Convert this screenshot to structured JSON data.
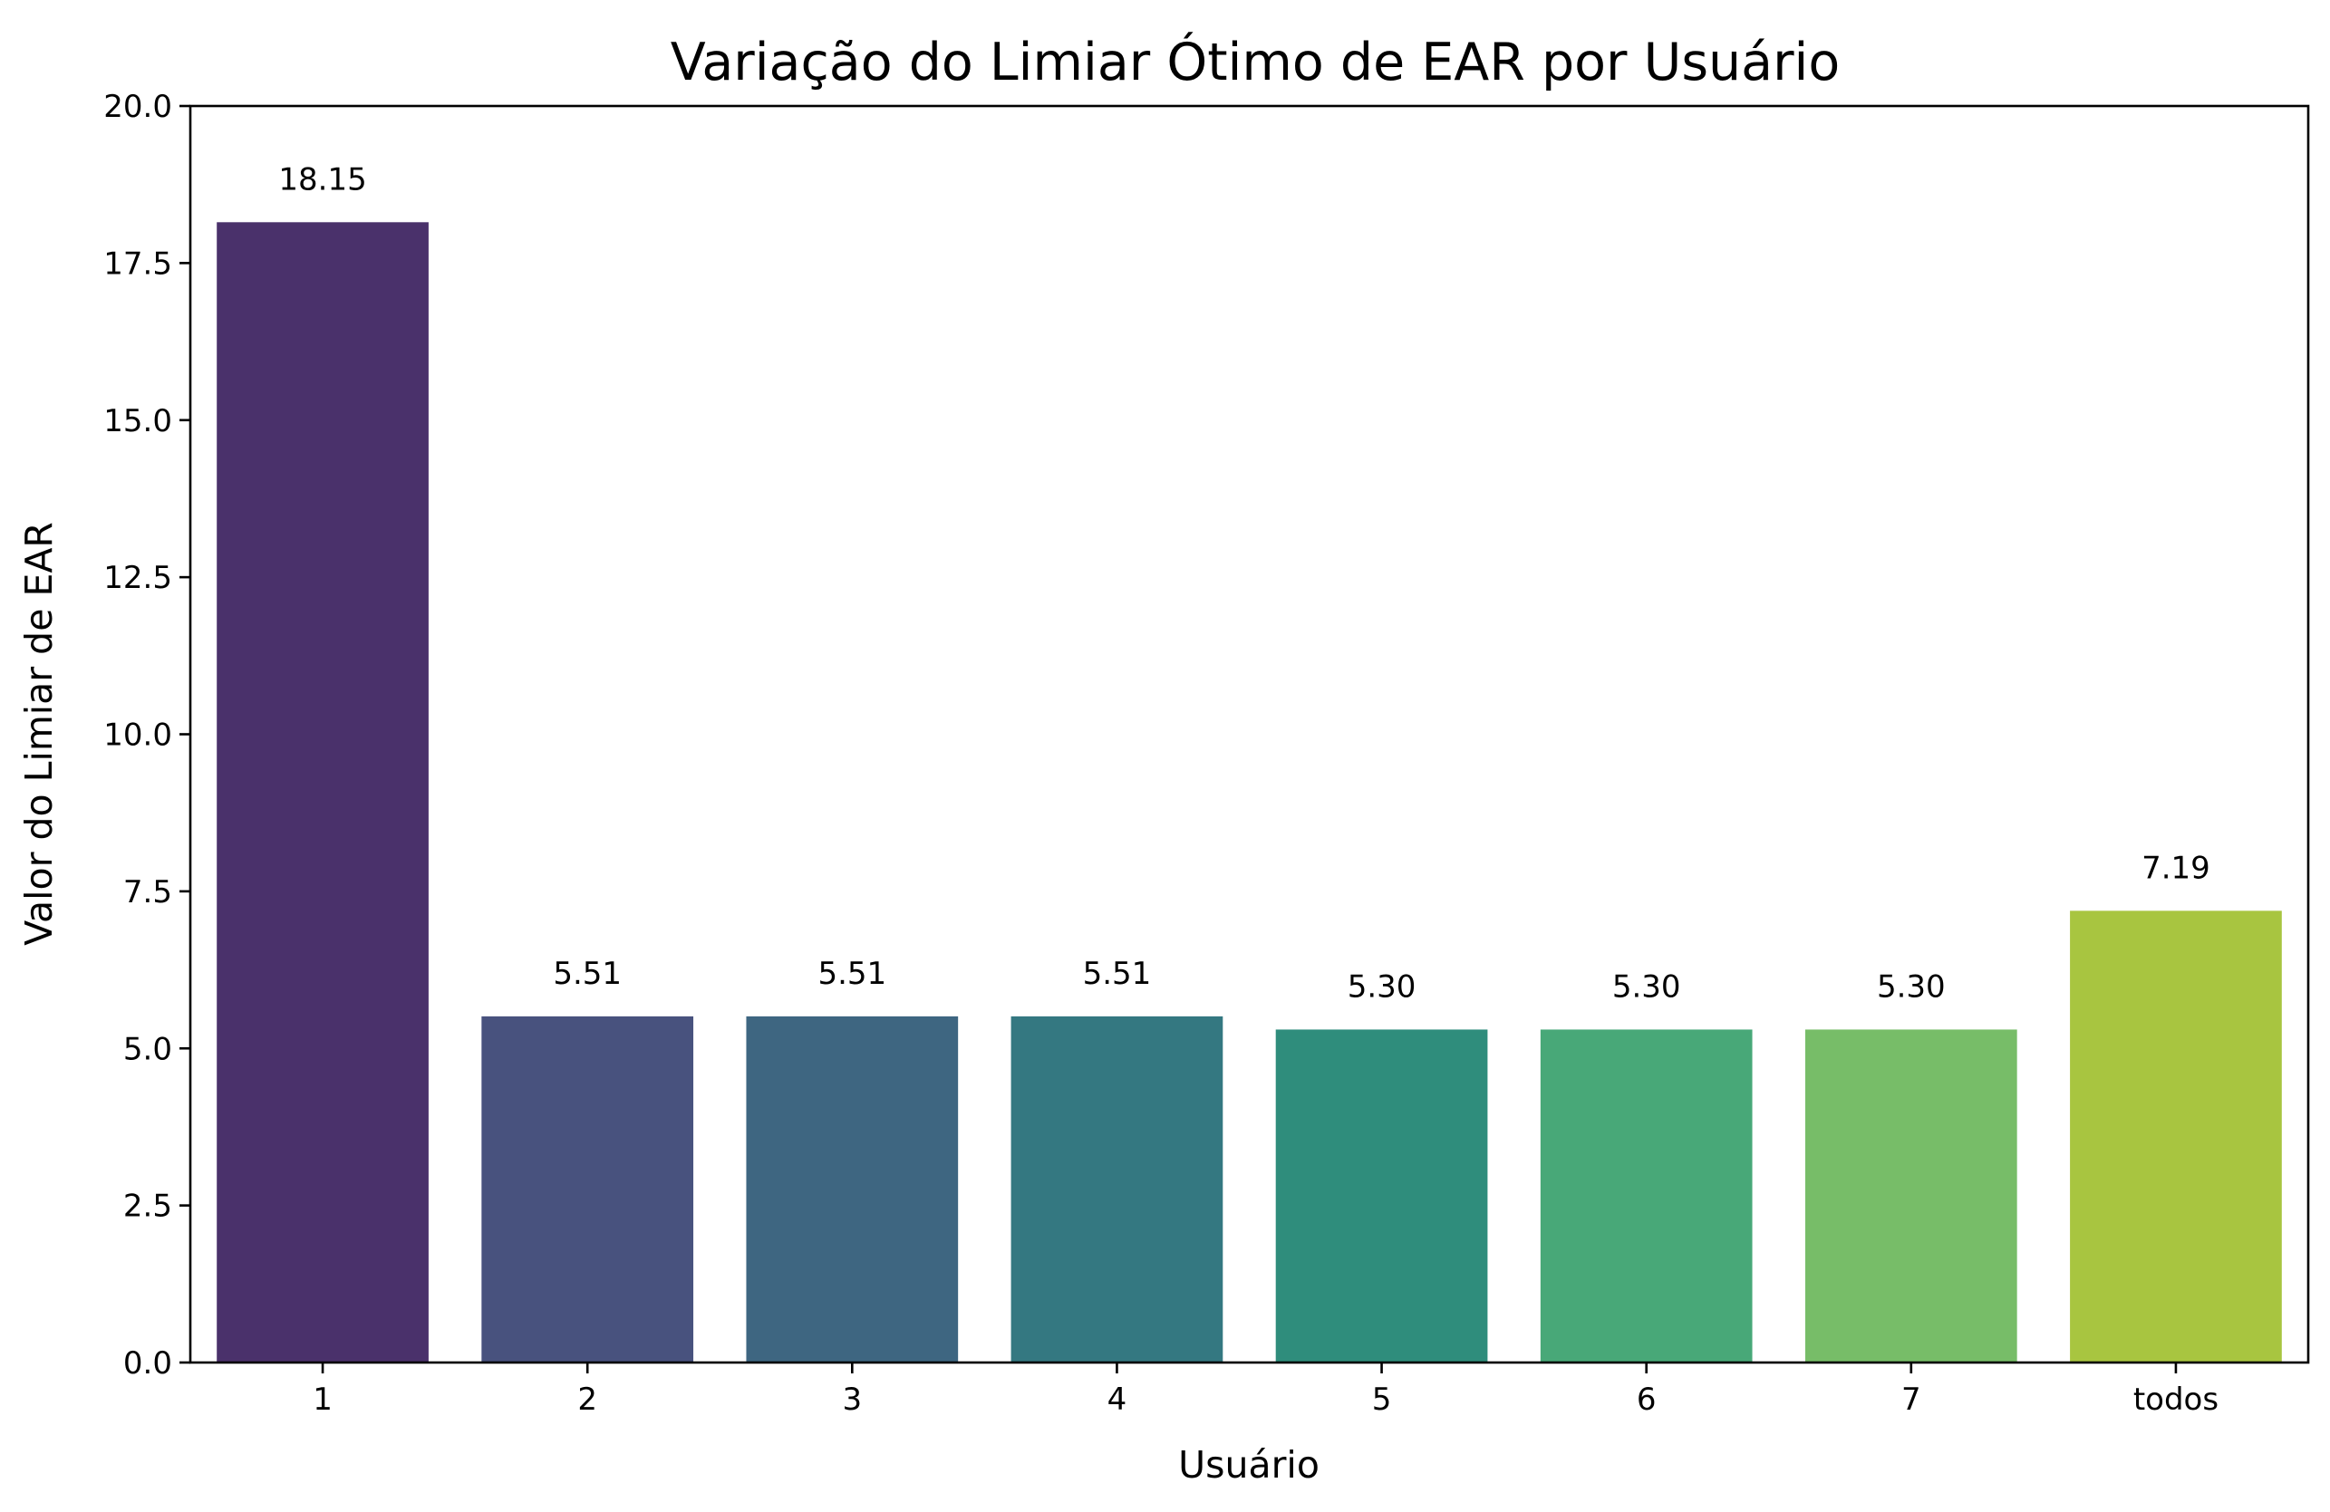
{
  "chart_data": {
    "type": "bar",
    "title": "Variação do Limiar Ótimo de EAR por Usuário",
    "xlabel": "Usuário",
    "ylabel": "Valor do Limiar de EAR",
    "categories": [
      "1",
      "2",
      "3",
      "4",
      "5",
      "6",
      "7",
      "todos"
    ],
    "values": [
      18.15,
      5.51,
      5.51,
      5.51,
      5.3,
      5.3,
      5.3,
      7.19
    ],
    "data_labels": [
      "18.15",
      "5.51",
      "5.51",
      "5.51",
      "5.30",
      "5.30",
      "5.30",
      "7.19"
    ],
    "colors": [
      "#4a316b",
      "#48527e",
      "#3e6681",
      "#347881",
      "#2f8d7c",
      "#48a878",
      "#77bd68",
      "#a8c540"
    ],
    "ylim": [
      0,
      20
    ],
    "yticks": [
      0,
      2.5,
      5,
      7.5,
      10,
      12.5,
      15,
      17.5,
      20
    ],
    "ytick_labels": [
      "0.0",
      "2.5",
      "5.0",
      "7.5",
      "10.0",
      "12.5",
      "15.0",
      "17.5",
      "20.0"
    ],
    "grid": false,
    "legend": "none"
  }
}
